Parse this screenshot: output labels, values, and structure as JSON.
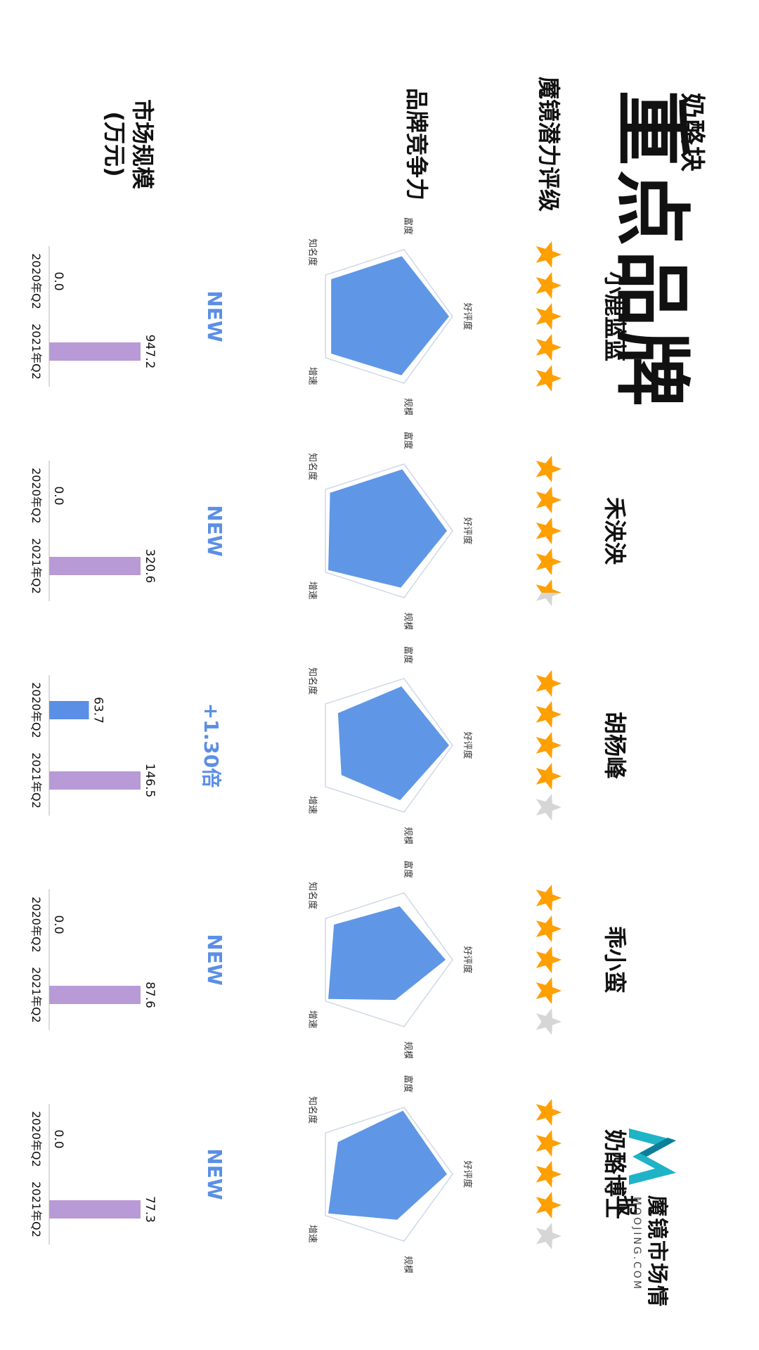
{
  "header": {
    "subtitle": "奶酪块",
    "title": "重点品牌"
  },
  "logo": {
    "name": "魔镜市场情报",
    "url_text": "MOOJING.COM"
  },
  "row_labels": {
    "rating": "魔镜潜力评级",
    "radar": "品牌竞争力",
    "market": "市场规模",
    "market_unit": "(万元)"
  },
  "radar_axes": [
    "好评度",
    "规模",
    "增速",
    "知名度",
    "商品丰富度"
  ],
  "colors": {
    "radar_fill": "#5f97e6",
    "radar_outline": "#cfd8e8",
    "bar_2020": "#5b8fe6",
    "bar_2021": "#b89ad6",
    "star_on": "#ff9f00",
    "star_off": "#d6d6d6",
    "growth_text": "#5b8fe6"
  },
  "chart_data": [
    {
      "type": "bar",
      "brand": "小鹿蓝蓝",
      "stars": 5,
      "radar": [
        0.95,
        0.88,
        0.9,
        0.9,
        0.9
      ],
      "growth": "NEW",
      "categories": [
        "2020年Q2",
        "2021年Q2"
      ],
      "values": [
        0.0,
        947.2
      ],
      "value_labels": [
        "0.0",
        "947.2"
      ]
    },
    {
      "type": "bar",
      "brand": "禾泱泱",
      "stars": 4.5,
      "radar": [
        0.92,
        0.85,
        0.95,
        0.92,
        0.92
      ],
      "growth": "NEW",
      "categories": [
        "2020年Q2",
        "2021年Q2"
      ],
      "values": [
        0.0,
        320.6
      ],
      "value_labels": [
        "0.0",
        "320.6"
      ]
    },
    {
      "type": "bar",
      "brand": "胡杨峰",
      "stars": 4,
      "radar": [
        0.95,
        0.82,
        0.72,
        0.78,
        0.88
      ],
      "growth": "+1.30倍",
      "categories": [
        "2020年Q2",
        "2021年Q2"
      ],
      "values": [
        63.7,
        146.5
      ],
      "value_labels": [
        "63.7",
        "146.5"
      ]
    },
    {
      "type": "bar",
      "brand": "乖小蛮",
      "stars": 4,
      "radar": [
        0.9,
        0.6,
        0.95,
        0.85,
        0.8
      ],
      "growth": "NEW",
      "categories": [
        "2020年Q2",
        "2021年Q2"
      ],
      "values": [
        0.0,
        87.6
      ],
      "value_labels": [
        "0.0",
        "87.6"
      ]
    },
    {
      "type": "bar",
      "brand": "奶酪博士",
      "stars": 4,
      "radar": [
        0.92,
        0.68,
        0.95,
        0.78,
        0.95
      ],
      "growth": "NEW",
      "categories": [
        "2020年Q2",
        "2021年Q2"
      ],
      "values": [
        0.0,
        77.3
      ],
      "value_labels": [
        "0.0",
        "77.3"
      ]
    }
  ]
}
